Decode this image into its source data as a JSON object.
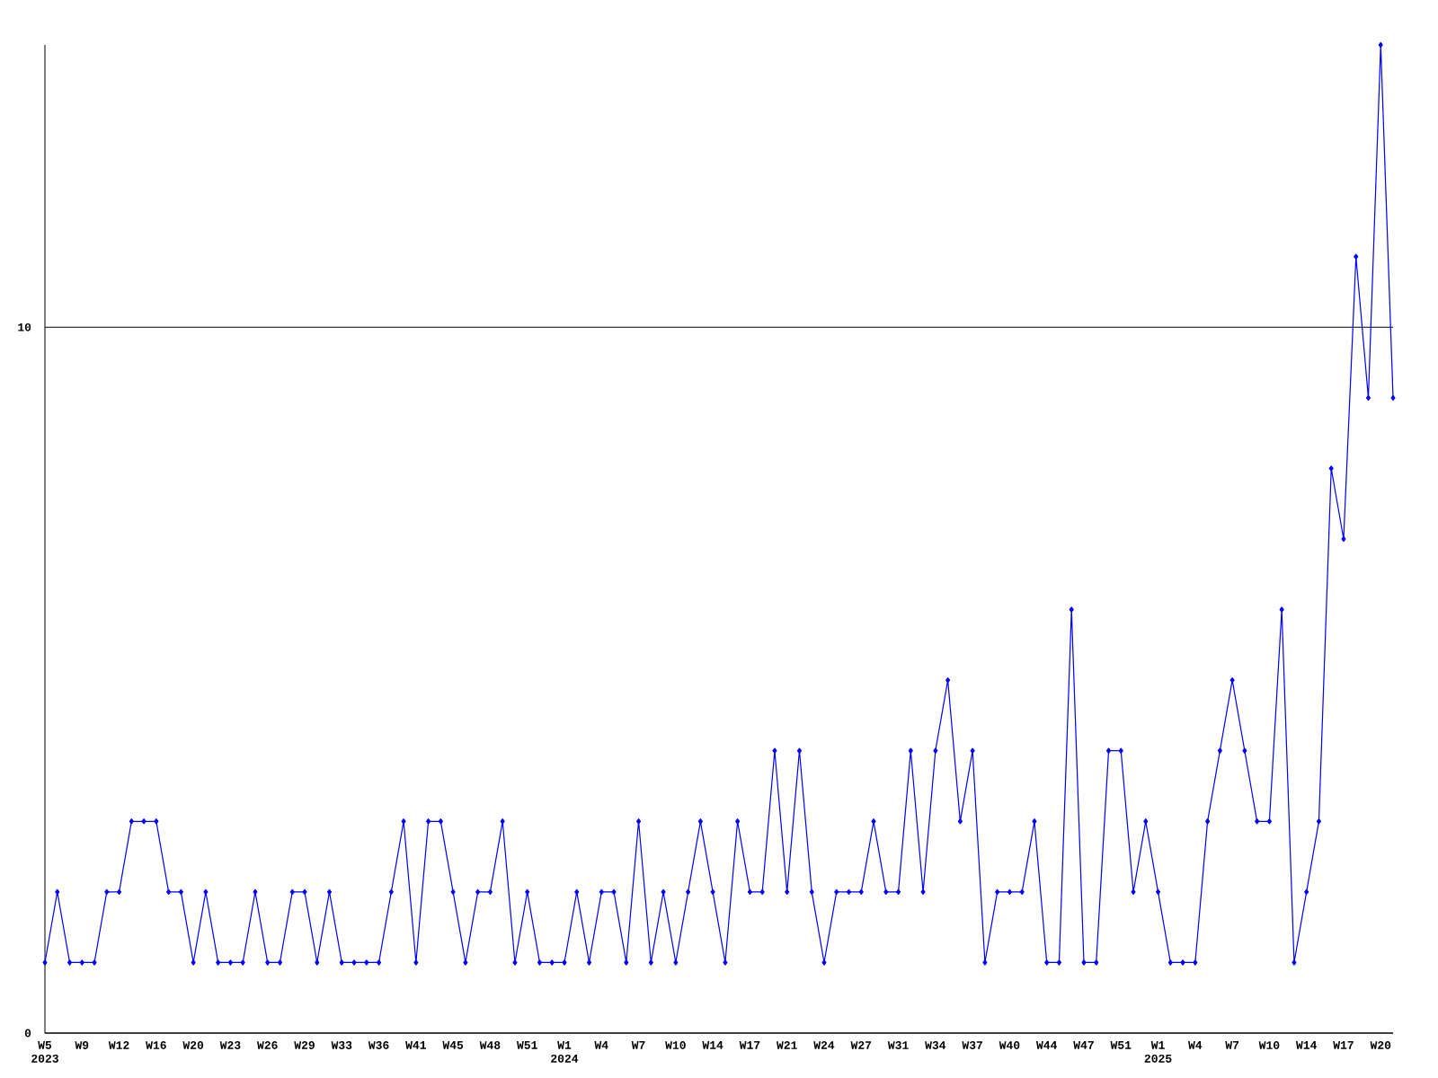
{
  "chart_data": {
    "type": "line",
    "categories": [
      "W5 2023",
      null,
      null,
      "W9",
      null,
      null,
      "W12",
      null,
      null,
      "W16",
      null,
      null,
      "W20",
      null,
      null,
      "W23",
      null,
      null,
      "W26",
      null,
      null,
      "W29",
      null,
      null,
      "W33",
      null,
      null,
      "W36",
      null,
      null,
      "W41",
      null,
      null,
      "W45",
      null,
      null,
      "W48",
      null,
      null,
      "W51",
      null,
      null,
      "W1 2024",
      null,
      null,
      "W4",
      null,
      null,
      "W7",
      null,
      null,
      "W10",
      null,
      null,
      "W14",
      null,
      null,
      "W17",
      null,
      null,
      "W21",
      null,
      null,
      "W24",
      null,
      null,
      "W27",
      null,
      null,
      "W31",
      null,
      null,
      "W34",
      null,
      null,
      "W37",
      null,
      null,
      "W40",
      null,
      null,
      "W44",
      null,
      null,
      "W47",
      null,
      null,
      "W51",
      null,
      null,
      "W1 2025",
      null,
      null,
      "W4",
      null,
      null,
      "W7",
      null,
      null,
      "W10",
      null,
      null,
      "W14",
      null,
      null,
      "W17",
      null,
      null,
      "W20",
      null
    ],
    "values": [
      1,
      2,
      1,
      1,
      1,
      2,
      2,
      3,
      3,
      3,
      2,
      2,
      1,
      2,
      1,
      1,
      1,
      2,
      1,
      1,
      2,
      2,
      1,
      2,
      1,
      1,
      1,
      1,
      2,
      3,
      1,
      3,
      3,
      2,
      1,
      2,
      2,
      3,
      1,
      2,
      1,
      1,
      1,
      2,
      1,
      2,
      2,
      1,
      3,
      1,
      2,
      1,
      2,
      3,
      2,
      1,
      3,
      2,
      2,
      4,
      2,
      4,
      2,
      1,
      2,
      2,
      2,
      3,
      2,
      2,
      4,
      2,
      4,
      5,
      3,
      4,
      1,
      2,
      2,
      2,
      3,
      1,
      1,
      6,
      1,
      1,
      4,
      4,
      2,
      3,
      2,
      1,
      1,
      1,
      3,
      4,
      5,
      4,
      3,
      3,
      6,
      1,
      2,
      3,
      8,
      7,
      11,
      9,
      14,
      9
    ],
    "color": "#0000ff",
    "ylim": [
      0,
      14
    ],
    "yticks": [
      0,
      10
    ],
    "grid": "y",
    "marker": "diamond",
    "line_style": "solid"
  }
}
